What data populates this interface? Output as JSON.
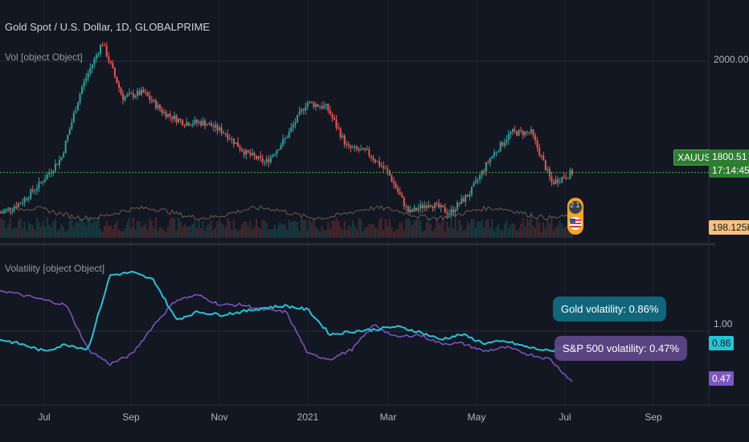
{
  "header": {
    "title": "Gold Spot / U.S. Dollar, 1D, GLOBALPRIME",
    "vol_label": "Vol [object Object]",
    "volatility_label": "Volatility [object Object]"
  },
  "price_scale": {
    "tick_2000": "2000.00",
    "price_tag": "1800.51",
    "countdown": "17:14:45",
    "symbol_tag": "XAUUSD",
    "volume_tag": "198.125K",
    "vol_tick": "1.00",
    "gold_tag": "0.86",
    "sp_tag": "0.47"
  },
  "annotations": {
    "gold_bubble": "Gold volatility: 0.86%",
    "sp_bubble": "S&P 500 volatility: 0.47%",
    "earnings_badge": "2 1"
  },
  "x_ticks": [
    "Jul",
    "Sep",
    "Nov",
    "2021",
    "Mar",
    "May",
    "Jul",
    "Sep"
  ],
  "colors": {
    "background": "#131722",
    "up": "#26a69a",
    "down": "#ef5350",
    "gold_line": "#22c5d6",
    "sp_line": "#7e57c2",
    "price_line": "#4caf50",
    "volume_tag": "#f8c27a"
  },
  "chart_data": [
    {
      "type": "candlestick",
      "title": "Gold Spot / U.S. Dollar, 1D, GLOBALPRIME",
      "series_name": "XAUUSD",
      "x": [
        "2020-06",
        "2020-06-15",
        "2020-07",
        "2020-07-15",
        "2020-08",
        "2020-08-07",
        "2020-08-15",
        "2020-09",
        "2020-09-15",
        "2020-10",
        "2020-10-15",
        "2020-11",
        "2020-11-15",
        "2020-12",
        "2020-12-15",
        "2021-01",
        "2021-01-06",
        "2021-01-15",
        "2021-02",
        "2021-02-15",
        "2021-03",
        "2021-03-15",
        "2021-04",
        "2021-04-15",
        "2021-05",
        "2021-05-15",
        "2021-06",
        "2021-06-15",
        "2021-07"
      ],
      "close": [
        1720,
        1740,
        1780,
        1830,
        1970,
        2060,
        1950,
        1960,
        1920,
        1900,
        1900,
        1880,
        1840,
        1820,
        1870,
        1940,
        1930,
        1850,
        1840,
        1800,
        1720,
        1740,
        1720,
        1760,
        1830,
        1880,
        1880,
        1780,
        1800.51
      ],
      "last_price": 1800.51,
      "volume_last": "198.125K",
      "ylim": [
        1680,
        2080
      ]
    },
    {
      "type": "line",
      "title": "Volatility [object Object]",
      "x": [
        "2020-06",
        "2020-06-15",
        "2020-07",
        "2020-07-15",
        "2020-08",
        "2020-08-15",
        "2020-09",
        "2020-09-15",
        "2020-10",
        "2020-10-15",
        "2020-11",
        "2020-11-15",
        "2020-12",
        "2020-12-15",
        "2021-01",
        "2021-01-15",
        "2021-02",
        "2021-02-15",
        "2021-03",
        "2021-03-15",
        "2021-04",
        "2021-04-15",
        "2021-05",
        "2021-05-15",
        "2021-06",
        "2021-06-15",
        "2021-07"
      ],
      "series": [
        {
          "name": "Gold volatility",
          "values": [
            0.9,
            0.85,
            0.78,
            0.85,
            0.8,
            1.55,
            1.58,
            1.5,
            1.1,
            1.18,
            1.15,
            1.18,
            1.22,
            1.24,
            1.2,
            0.95,
            0.98,
            1.0,
            1.03,
            0.98,
            0.9,
            0.95,
            0.86,
            0.88,
            0.82,
            0.78,
            0.86
          ]
        },
        {
          "name": "S&P 500 volatility",
          "values": [
            1.4,
            1.35,
            1.3,
            1.25,
            0.8,
            0.65,
            0.75,
            1.05,
            1.3,
            1.35,
            1.25,
            1.25,
            1.2,
            1.18,
            0.75,
            0.7,
            0.8,
            1.05,
            0.92,
            0.95,
            0.86,
            0.86,
            0.78,
            0.82,
            0.75,
            0.7,
            0.47
          ]
        }
      ],
      "last_values": {
        "Gold volatility": 0.86,
        "S&P 500 volatility": 0.47
      },
      "ylim": [
        0.3,
        1.75
      ]
    }
  ]
}
